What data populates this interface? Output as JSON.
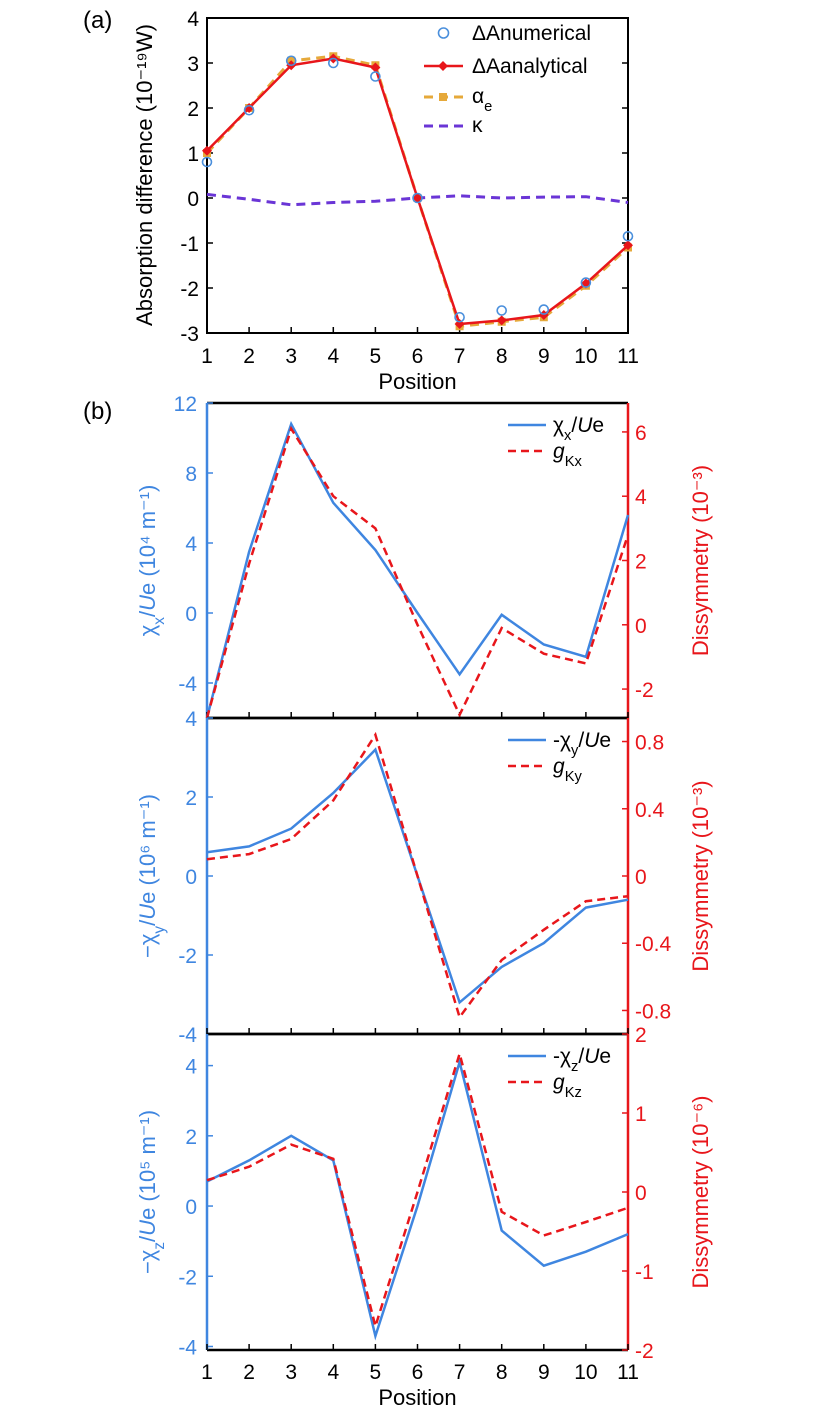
{
  "figure": {
    "label_a": "(a)",
    "label_b": "(b)"
  },
  "chart_data": [
    {
      "type": "line",
      "panel": "(a)",
      "xlabel": "Position",
      "ylabel": "Absorption difference (10⁻¹⁹W)",
      "xlim": [
        1,
        11
      ],
      "ylim": [
        -3,
        4
      ],
      "xticks": [
        1,
        2,
        3,
        4,
        5,
        6,
        7,
        8,
        9,
        10,
        11
      ],
      "yticks": [
        -3,
        -2,
        -1,
        0,
        1,
        2,
        3,
        4
      ],
      "x": [
        1,
        2,
        3,
        4,
        5,
        6,
        7,
        8,
        9,
        10,
        11
      ],
      "series": [
        {
          "name": "ΔAnumerical",
          "style": "markers",
          "marker": "circle",
          "color": "#4a8fdc",
          "values": [
            0.8,
            1.95,
            3.05,
            3.0,
            2.7,
            0.0,
            -2.65,
            -2.5,
            -2.48,
            -1.88,
            -0.85
          ]
        },
        {
          "name": "ΔAanalytical",
          "style": "line",
          "marker": "diamond",
          "color": "#e8161b",
          "values": [
            1.05,
            2.0,
            2.95,
            3.1,
            2.9,
            0.0,
            -2.8,
            -2.72,
            -2.6,
            -1.9,
            -1.05
          ]
        },
        {
          "name": "αe",
          "style": "dashed",
          "marker": "square",
          "color": "#e6a93a",
          "values": [
            1.0,
            2.0,
            3.05,
            3.15,
            2.95,
            0.0,
            -2.85,
            -2.75,
            -2.65,
            -1.95,
            -1.1
          ]
        },
        {
          "name": "κ",
          "style": "dashed",
          "marker": "none",
          "color": "#6a35d6",
          "values": [
            0.08,
            -0.03,
            -0.15,
            -0.1,
            -0.07,
            0.0,
            0.05,
            0.0,
            0.02,
            0.03,
            -0.1
          ]
        }
      ],
      "legend_position": "top-right",
      "grid": false
    },
    {
      "type": "line",
      "panel": "(b) top",
      "x": [
        1,
        2,
        3,
        4,
        5,
        6,
        7,
        8,
        9,
        10,
        11
      ],
      "xlim": [
        1,
        11
      ],
      "ylabel_left": "χx/Ue (10⁴ m⁻¹)",
      "ylabel_right": "Dissymmetry (10⁻³)",
      "ylim_left": [
        -6,
        12
      ],
      "ylim_right": [
        -2.9,
        6.9
      ],
      "yticks_left": [
        -4,
        0,
        4,
        8,
        12
      ],
      "yticks_right": [
        -2,
        0,
        2,
        4,
        6
      ],
      "series": [
        {
          "name": "χx/Ue",
          "axis": "left",
          "style": "solid",
          "color": "#3f86e0",
          "values": [
            -6.0,
            3.5,
            10.8,
            6.3,
            3.6,
            0.0,
            -3.5,
            -0.1,
            -1.8,
            -2.5,
            5.6
          ]
        },
        {
          "name": "gKx",
          "axis": "right",
          "style": "dashed",
          "color": "#e8161b",
          "values": [
            -2.9,
            1.9,
            6.1,
            4.0,
            3.0,
            0.0,
            -2.8,
            -0.1,
            -0.9,
            -1.2,
            2.8
          ]
        }
      ],
      "legend_position": "top-right"
    },
    {
      "type": "line",
      "panel": "(b) middle",
      "x": [
        1,
        2,
        3,
        4,
        5,
        6,
        7,
        8,
        9,
        10,
        11
      ],
      "xlim": [
        1,
        11
      ],
      "ylabel_left": "−χy/Ue (10⁶ m⁻¹)",
      "ylabel_right": "Dissymmetry (10⁻³)",
      "ylim_left": [
        -4,
        4
      ],
      "ylim_right": [
        -0.94,
        0.94
      ],
      "yticks_left": [
        -4,
        -2,
        0,
        2,
        4
      ],
      "yticks_right": [
        -0.8,
        -0.4,
        0,
        0.4,
        0.8
      ],
      "series": [
        {
          "name": "-χy/Ue",
          "axis": "left",
          "style": "solid",
          "color": "#3f86e0",
          "values": [
            0.6,
            0.75,
            1.2,
            2.1,
            3.2,
            0.0,
            -3.2,
            -2.3,
            -1.7,
            -0.8,
            -0.6
          ]
        },
        {
          "name": "gKy",
          "axis": "right",
          "style": "dashed",
          "color": "#e8161b",
          "values": [
            0.1,
            0.13,
            0.22,
            0.45,
            0.84,
            0.0,
            -0.84,
            -0.5,
            -0.32,
            -0.15,
            -0.12
          ]
        }
      ],
      "legend_position": "top-right"
    },
    {
      "type": "line",
      "panel": "(b) bottom",
      "xlabel": "Position",
      "x": [
        1,
        2,
        3,
        4,
        5,
        6,
        7,
        8,
        9,
        10,
        11
      ],
      "xlim": [
        1,
        11
      ],
      "xticks": [
        1,
        2,
        3,
        4,
        5,
        6,
        7,
        8,
        9,
        10,
        11
      ],
      "ylabel_left": "−χz/Ue (10⁵ m⁻¹)",
      "ylabel_right": "Dissymmetry (10⁻⁶)",
      "ylim_left": [
        -4.1,
        4.9
      ],
      "ylim_right": [
        -2.0,
        2.0
      ],
      "yticks_left": [
        -4,
        -2,
        0,
        2,
        4
      ],
      "yticks_right": [
        -2,
        -1,
        0,
        1,
        2
      ],
      "series": [
        {
          "name": "-χz/Ue",
          "axis": "left",
          "style": "solid",
          "color": "#3f86e0",
          "values": [
            0.7,
            1.3,
            2.0,
            1.3,
            -3.7,
            0.0,
            4.1,
            -0.7,
            -1.7,
            -1.3,
            -0.8
          ]
        },
        {
          "name": "gKz",
          "axis": "right",
          "style": "dashed",
          "color": "#e8161b",
          "values": [
            0.15,
            0.32,
            0.6,
            0.42,
            -1.7,
            0.0,
            1.75,
            -0.25,
            -0.55,
            -0.38,
            -0.2
          ]
        }
      ],
      "legend_position": "top-right"
    }
  ]
}
